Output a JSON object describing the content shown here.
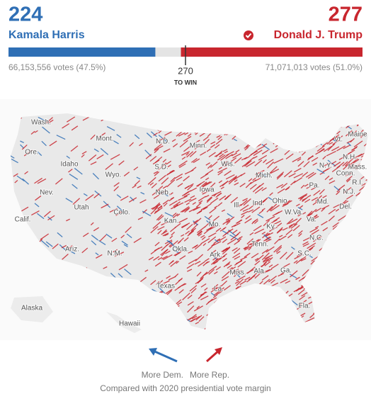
{
  "harris": {
    "electoral_votes": 224,
    "name": "Kamala Harris",
    "votes": "66,153,556 votes (47.5%)",
    "color": "#2f6fb5"
  },
  "trump": {
    "electoral_votes": 277,
    "name": "Donald J. Trump",
    "votes": "71,071,013 votes (51.0%)",
    "color": "#c8262e"
  },
  "threshold": {
    "value": 270,
    "label": "TO WIN"
  },
  "map": {
    "state_labels": [
      "Wash.",
      "Ore.",
      "Idaho",
      "Mont.",
      "Wyo.",
      "N.D.",
      "S.D.",
      "Minn.",
      "Wis.",
      "Mich.",
      "Nev.",
      "Utah",
      "Colo.",
      "Neb.",
      "Iowa",
      "Ill.",
      "Ind.",
      "Ohio",
      "Calif.",
      "Kan.",
      "Mo.",
      "Ky.",
      "W.Va.",
      "Va.",
      "Ariz.",
      "N.M.",
      "Okla.",
      "Ark.",
      "Tenn.",
      "N.C.",
      "S.C.",
      "Texas",
      "Miss.",
      "Ala.",
      "Ga.",
      "La.",
      "Fla.",
      "Alaska",
      "Hawaii",
      "Vt.",
      "Maine",
      "N.H.",
      "Mass.",
      "N.Y.",
      "Conn.",
      "R.I.",
      "Pa.",
      "N.J.",
      "Md.",
      "Del."
    ]
  },
  "legend": {
    "dem": "More Dem.",
    "rep": "More Rep.",
    "note": "Compared with 2020 presidential vote margin"
  }
}
